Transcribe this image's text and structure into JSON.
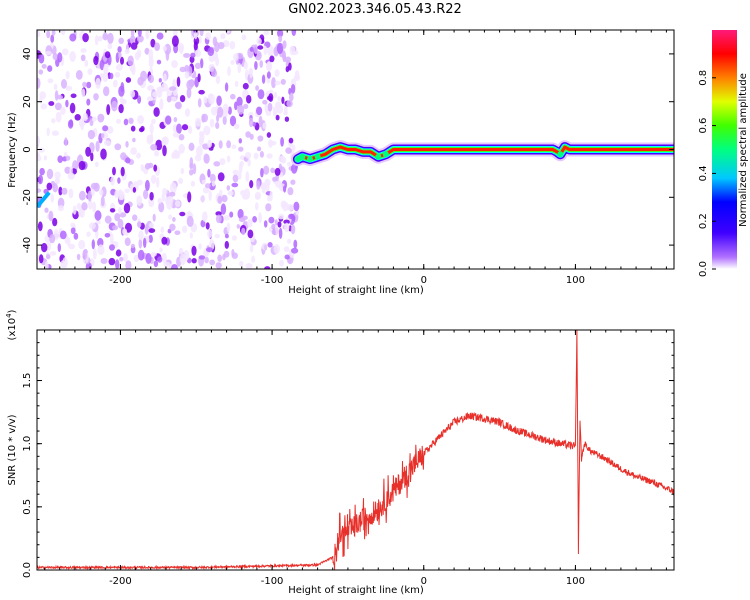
{
  "title": "GN02.2023.346.05.43.R22",
  "colors": {
    "snr_line": "#e8302b",
    "axis": "#000000",
    "noise_palette": [
      "#f3e6ff",
      "#d9b3ff",
      "#b266ff",
      "#7a00e6"
    ],
    "colormap": [
      "#ffffff",
      "#8a2be2",
      "#0000ff",
      "#00ffff",
      "#00ff00",
      "#ffff00",
      "#ff8000",
      "#ff0000",
      "#ff1493"
    ]
  },
  "chart_data": [
    {
      "type": "heatmap",
      "xlabel": "Height of straight line (km)",
      "ylabel": "Frequency (Hz)",
      "xlim": [
        -255,
        165
      ],
      "ylim": [
        -50,
        50
      ],
      "xticks": [
        -200,
        -100,
        0,
        100
      ],
      "yticks": [
        -40,
        -20,
        0,
        20,
        40
      ],
      "colorbar": {
        "label": "Normalized spectral amplitude",
        "range": [
          0,
          1
        ],
        "ticks": [
          "0.0",
          "0.2",
          "0.4",
          "0.6",
          "0.8"
        ]
      },
      "noise_region_x": [
        -255,
        -83
      ],
      "signal_track": {
        "x": [
          -83,
          -80,
          -75,
          -70,
          -65,
          -60,
          -55,
          -50,
          -45,
          -40,
          -35,
          -30,
          -25,
          -20,
          -10,
          0,
          20,
          40,
          60,
          85,
          88,
          90,
          93,
          96,
          120,
          165
        ],
        "frequency": [
          -4,
          -3,
          -4,
          -3,
          -2,
          0,
          1,
          0,
          0,
          -1,
          -1,
          -3,
          -2,
          0,
          0,
          0,
          0,
          0,
          0,
          0,
          -1,
          -2,
          1,
          0,
          0,
          0
        ],
        "amplitude": [
          0.3,
          0.5,
          0.6,
          0.65,
          0.7,
          0.75,
          0.8,
          0.85,
          0.85,
          0.8,
          0.7,
          0.55,
          0.6,
          0.8,
          0.9,
          0.9,
          0.9,
          0.9,
          0.9,
          0.9,
          0.7,
          0.6,
          0.7,
          0.85,
          0.85,
          0.85
        ]
      },
      "left_feature": {
        "x": [
          -255,
          -247
        ],
        "frequency": [
          -24,
          -18
        ]
      }
    },
    {
      "type": "line",
      "xlabel": "Height of straight line (km)",
      "ylabel": "SNR (10 * v/v)",
      "scale_label": "(x10^4)",
      "xlim": [
        -255,
        165
      ],
      "ylim": [
        0,
        1.9
      ],
      "xticks": [
        -200,
        -100,
        0,
        100
      ],
      "yticks": [
        "0.0",
        "0.5",
        "1.0",
        "1.5"
      ],
      "ytick_values": [
        0.0,
        0.5,
        1.0,
        1.5
      ],
      "series": [
        {
          "x": [
            -255,
            -150,
            -70,
            -60,
            -55,
            -50,
            -45,
            -40,
            -30,
            -20,
            -10,
            0,
            10,
            20,
            30,
            40,
            50,
            60,
            70,
            80,
            90,
            100,
            101,
            102,
            103,
            104,
            106,
            110,
            120,
            130,
            140,
            150,
            165
          ],
          "values": [
            0.02,
            0.02,
            0.04,
            0.1,
            0.28,
            0.3,
            0.35,
            0.4,
            0.48,
            0.62,
            0.78,
            0.92,
            1.05,
            1.17,
            1.22,
            1.2,
            1.17,
            1.11,
            1.07,
            1.03,
            1.0,
            0.98,
            1.9,
            0.15,
            1.2,
            0.88,
            1.0,
            0.94,
            0.88,
            0.8,
            0.74,
            0.7,
            0.62
          ]
        }
      ]
    }
  ]
}
